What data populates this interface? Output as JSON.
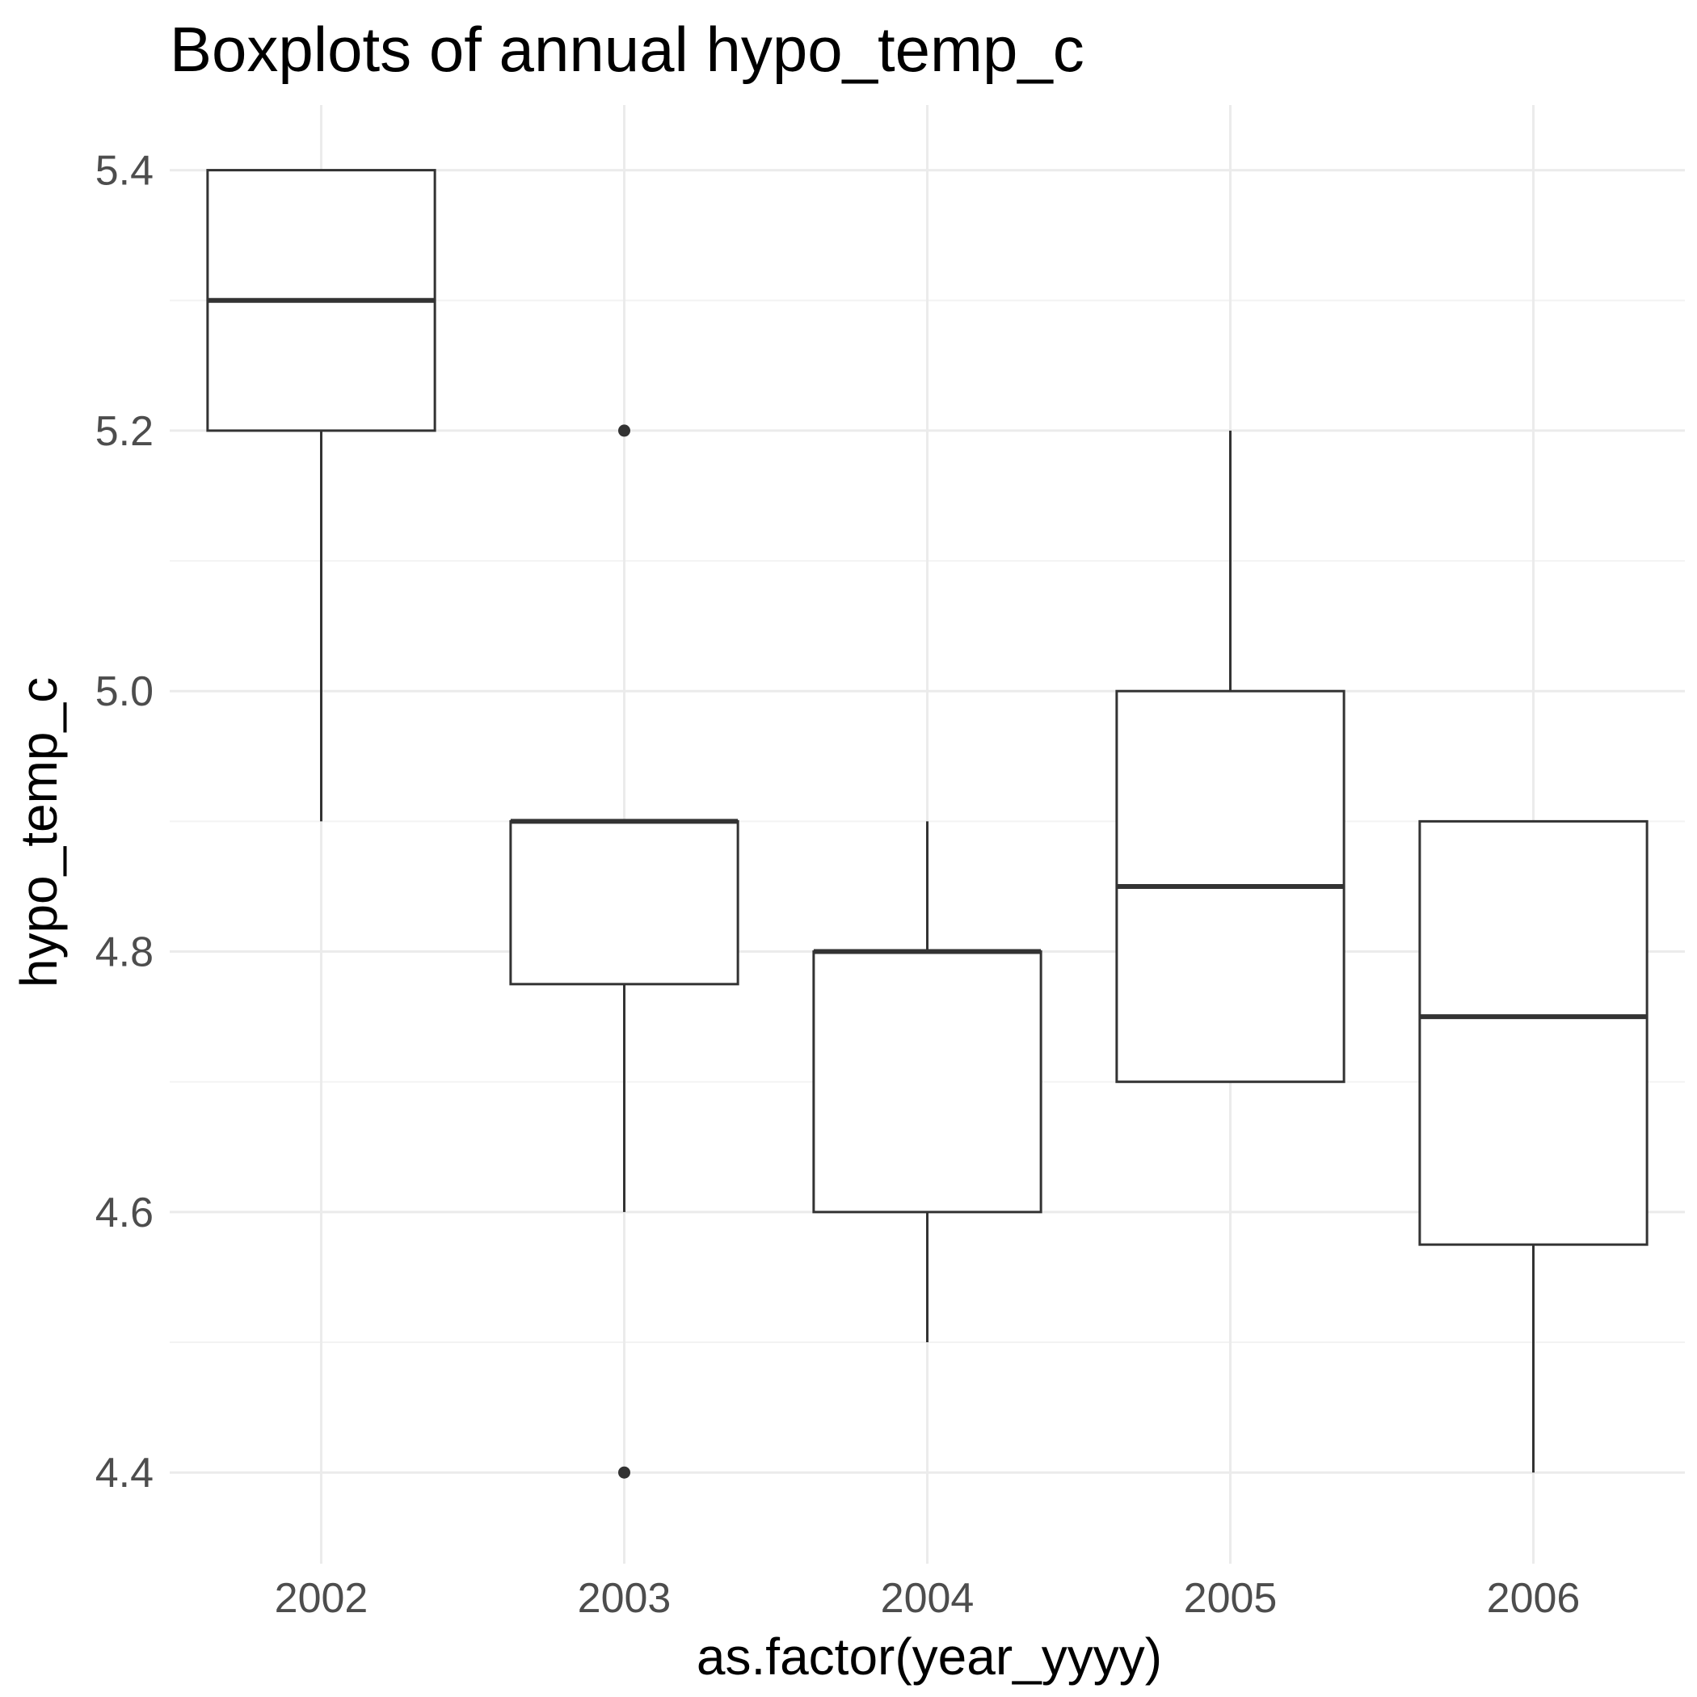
{
  "chart_data": {
    "type": "boxplot",
    "title": "Boxplots of annual hypo_temp_c",
    "xlabel": "as.factor(year_yyyy)",
    "ylabel": "hypo_temp_c",
    "categories": [
      "2002",
      "2003",
      "2004",
      "2005",
      "2006"
    ],
    "boxes": [
      {
        "category": "2002",
        "lower_whisker": 4.9,
        "q1": 5.2,
        "median": 5.3,
        "q3": 5.4,
        "upper_whisker": 5.4,
        "outliers": []
      },
      {
        "category": "2003",
        "lower_whisker": 4.6,
        "q1": 4.775,
        "median": 4.9,
        "q3": 4.9,
        "upper_whisker": 4.9,
        "outliers": [
          5.2,
          4.4
        ]
      },
      {
        "category": "2004",
        "lower_whisker": 4.5,
        "q1": 4.6,
        "median": 4.8,
        "q3": 4.8,
        "upper_whisker": 4.9,
        "outliers": []
      },
      {
        "category": "2005",
        "lower_whisker": 4.7,
        "q1": 4.7,
        "median": 4.85,
        "q3": 5.0,
        "upper_whisker": 5.2,
        "outliers": []
      },
      {
        "category": "2006",
        "lower_whisker": 4.4,
        "q1": 4.575,
        "median": 4.75,
        "q3": 4.9,
        "upper_whisker": 4.9,
        "outliers": []
      }
    ],
    "yticks": [
      "4.4",
      "4.6",
      "4.8",
      "5.0",
      "5.2",
      "5.4"
    ],
    "ylim": [
      4.33,
      5.45
    ],
    "grid": true,
    "theme": "minimal",
    "colors": {
      "box_stroke": "#333333",
      "box_fill": "#ffffff",
      "grid_major": "#ebebeb",
      "grid_minor": "#f3f3f3",
      "tick_text": "#4d4d4d",
      "title_text": "#000000"
    }
  }
}
